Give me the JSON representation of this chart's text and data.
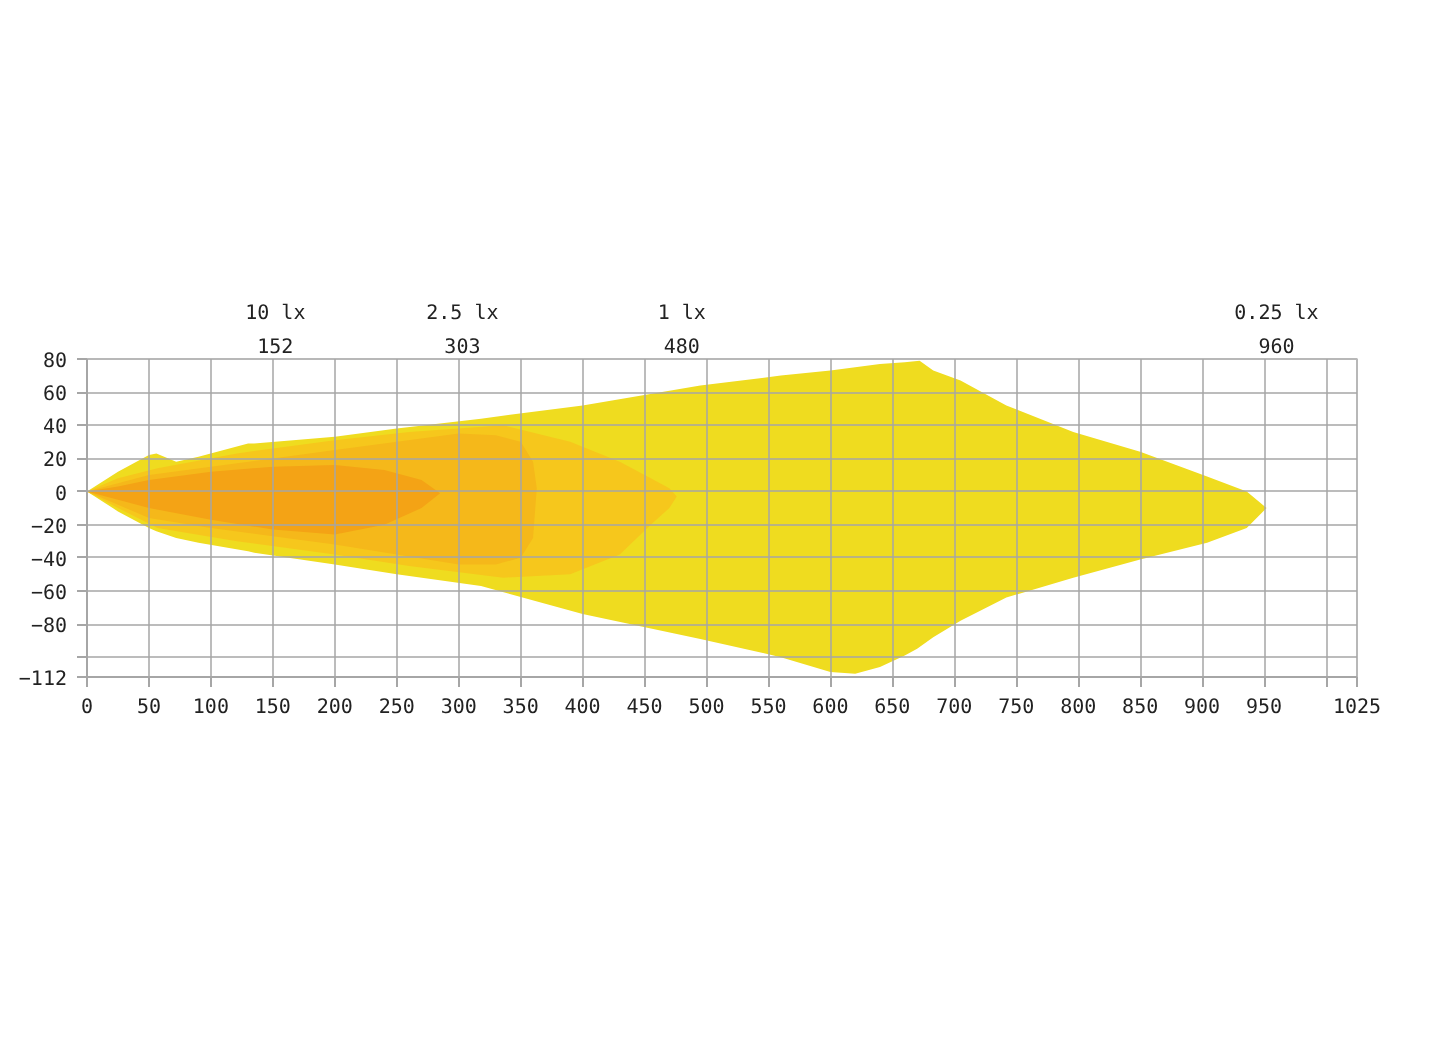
{
  "chart_data": {
    "type": "area",
    "xlim": [
      0,
      1025
    ],
    "xticks": [
      0,
      50,
      100,
      150,
      200,
      250,
      300,
      350,
      400,
      450,
      500,
      550,
      600,
      650,
      700,
      750,
      800,
      850,
      900,
      950,
      {
        "value": 1000,
        "label": null
      },
      1025
    ],
    "ylim": [
      -112,
      80
    ],
    "yticks": [
      80,
      60,
      40,
      20,
      0,
      -20,
      -40,
      -60,
      -80,
      {
        "value": -100,
        "label": null
      },
      -112
    ],
    "x2lim": [
      0,
      1025
    ],
    "x2ticks": [
      152,
      303,
      480,
      960
    ],
    "annotations": [
      "10 lx",
      "2.5 lx",
      "1 lx",
      "0.25 lx"
    ],
    "grid": true,
    "series": [
      {
        "color": "#efdc1f",
        "x": [
          0,
          25,
          50,
          56,
          72,
          90,
          130,
          135,
          200,
          250,
          318,
          400,
          495,
          560,
          600,
          620,
          640,
          660,
          672,
          683,
          705,
          742,
          796,
          850,
          904,
          936,
          952,
          936,
          904,
          850,
          796,
          742,
          705,
          683,
          670,
          660,
          640,
          620,
          600,
          560,
          495,
          400,
          318,
          250,
          200,
          135,
          130,
          90,
          72,
          56,
          50,
          25
        ],
        "values": [
          0,
          12,
          22,
          23,
          18,
          21,
          29,
          29,
          33,
          38,
          44,
          52,
          64,
          70,
          73,
          75,
          77,
          78,
          79,
          73,
          67,
          52,
          36,
          24,
          9,
          0,
          -10,
          -22,
          -31,
          -41,
          -52,
          -64,
          -78,
          -88,
          -95,
          -99,
          -106,
          -110,
          -109,
          -100,
          -89,
          -74,
          -57,
          -50,
          -44,
          -37,
          -36,
          -31,
          -28,
          -24,
          -22,
          -12
        ]
      },
      {
        "color": "#f6c71c",
        "x": [
          0,
          25,
          57,
          121,
          200,
          260,
          336,
          390,
          430,
          455,
          470,
          476,
          470,
          455,
          430,
          390,
          336,
          260,
          200,
          121,
          57,
          25
        ],
        "values": [
          0,
          8,
          14,
          23,
          31,
          36,
          40,
          30,
          18,
          8,
          2,
          -3,
          -10,
          -20,
          -38,
          -50,
          -52,
          -45,
          -38,
          -30,
          -22,
          -10
        ]
      },
      {
        "color": "#f5b81a",
        "x": [
          0,
          25,
          50,
          100,
          150,
          200,
          250,
          300,
          330,
          350,
          360,
          363,
          360,
          350,
          330,
          300,
          250,
          200,
          150,
          100,
          50,
          25
        ],
        "values": [
          0,
          5,
          10,
          15,
          20,
          25,
          30,
          35,
          34,
          30,
          18,
          2,
          -28,
          -40,
          -44,
          -44,
          -38,
          -32,
          -27,
          -22,
          -16,
          -8
        ]
      },
      {
        "color": "#f4a315",
        "x": [
          0,
          25,
          50,
          100,
          150,
          200,
          240,
          270,
          285,
          270,
          240,
          200,
          150,
          100,
          50,
          25
        ],
        "values": [
          0,
          3,
          7,
          12,
          15,
          16,
          13,
          7,
          -1,
          -10,
          -20,
          -26,
          -23,
          -17,
          -10,
          -5
        ]
      }
    ]
  }
}
